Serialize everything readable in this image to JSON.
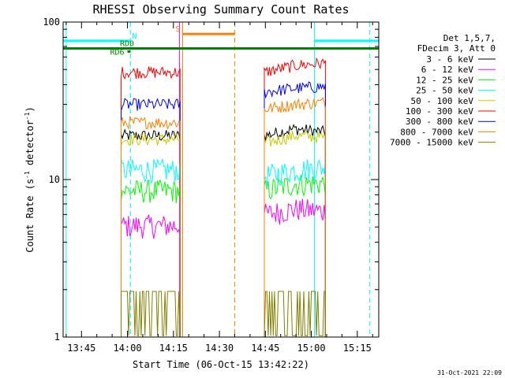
{
  "chart_data": {
    "type": "line",
    "title": "RHESSI Observing Summary Count Rates",
    "xlabel": "Start Time (06-Oct-15 13:42:22)",
    "ylabel_main": "Count Rate (s",
    "ylabel_sup1": "-1",
    "ylabel_mid": " detector",
    "ylabel_sup2": "-1",
    "ylabel_end": ")",
    "yscale": "log",
    "ylim": [
      1,
      100
    ],
    "xlim": [
      "13:39",
      "15:22"
    ],
    "x_ticks": [
      "13:45",
      "14:00",
      "14:15",
      "14:30",
      "14:45",
      "15:00",
      "15:15"
    ],
    "y_ticks": [
      "1",
      "10",
      "100"
    ],
    "legend_header": [
      "Det 1,5,7,",
      "FDecim 3, Att 0"
    ],
    "timestamp": "31-Oct-2021 22:09",
    "data_gaps": [
      [
        "13:42:22",
        "13:57:55"
      ],
      [
        "14:17:10",
        "14:44:40"
      ],
      [
        "15:04:35",
        "15:22:00"
      ]
    ],
    "series": [
      {
        "name": "3 - 6 keV",
        "color": "#000000",
        "seg1": 19,
        "seg2": [
          19,
          21,
          20
        ]
      },
      {
        "name": "6 - 12 keV",
        "color": "#ff00ff",
        "seg1": 5.1,
        "seg2": [
          6.0,
          6.5,
          6.3
        ]
      },
      {
        "name": "12 - 25 keV",
        "color": "#00ff00",
        "seg1": 8.5,
        "seg2": [
          8.5,
          9.4,
          9.5
        ]
      },
      {
        "name": "25 - 50 keV",
        "color": "#00ffff",
        "seg1": 11.5,
        "seg2": [
          10.5,
          11.5,
          12.0
        ]
      },
      {
        "name": "50 - 100 keV",
        "color": "#c8c800",
        "seg1": 18,
        "seg2": [
          17,
          19,
          18.5
        ]
      },
      {
        "name": "100 - 300 keV",
        "color": "#ff0000",
        "seg1": 48,
        "seg2": [
          48,
          53,
          55
        ]
      },
      {
        "name": "300 - 800 keV",
        "color": "#0000ff",
        "seg1": 30,
        "seg2": [
          36,
          38,
          39
        ]
      },
      {
        "name": "800 - 7000 keV",
        "color": "#ff8000",
        "seg1": 23,
        "seg2": [
          28,
          30,
          31
        ]
      },
      {
        "name": "7000 - 15000 keV",
        "color": "#808000",
        "seg1": 1.4,
        "seg2": [
          1.4,
          1.5,
          1.5
        ]
      }
    ],
    "flags": [
      {
        "label": "N",
        "color": "#00ffff",
        "spans": [
          [
            "13:39",
            "14:01"
          ],
          [
            "15:01",
            "15:22"
          ]
        ],
        "y": 76
      },
      {
        "label": "S",
        "color": "#ff8000",
        "spans": [
          [
            "14:18",
            "14:35"
          ]
        ],
        "y": 84
      },
      {
        "label": "RD0",
        "color": "#008000",
        "spans": [
          [
            "13:39",
            "15:22"
          ]
        ],
        "y": 68
      },
      {
        "label": "RD6",
        "color": "#008000",
        "spans": [
          [
            "14:00",
            "14:01"
          ]
        ],
        "y": 65
      }
    ],
    "vlines": [
      {
        "t": "13:40",
        "color": "#00ffff",
        "dash": false
      },
      {
        "t": "14:01",
        "color": "#00ffff",
        "dash": true
      },
      {
        "t": "14:17",
        "color": "#ff00ff",
        "dash": false
      },
      {
        "t": "14:18",
        "color": "#ff8000",
        "dash": false
      },
      {
        "t": "14:35",
        "color": "#ff8000",
        "dash": true
      },
      {
        "t": "15:01",
        "color": "#00ffff",
        "dash": false
      },
      {
        "t": "15:19",
        "color": "#00ffff",
        "dash": true
      }
    ],
    "grid": false,
    "legend_position": "right"
  }
}
